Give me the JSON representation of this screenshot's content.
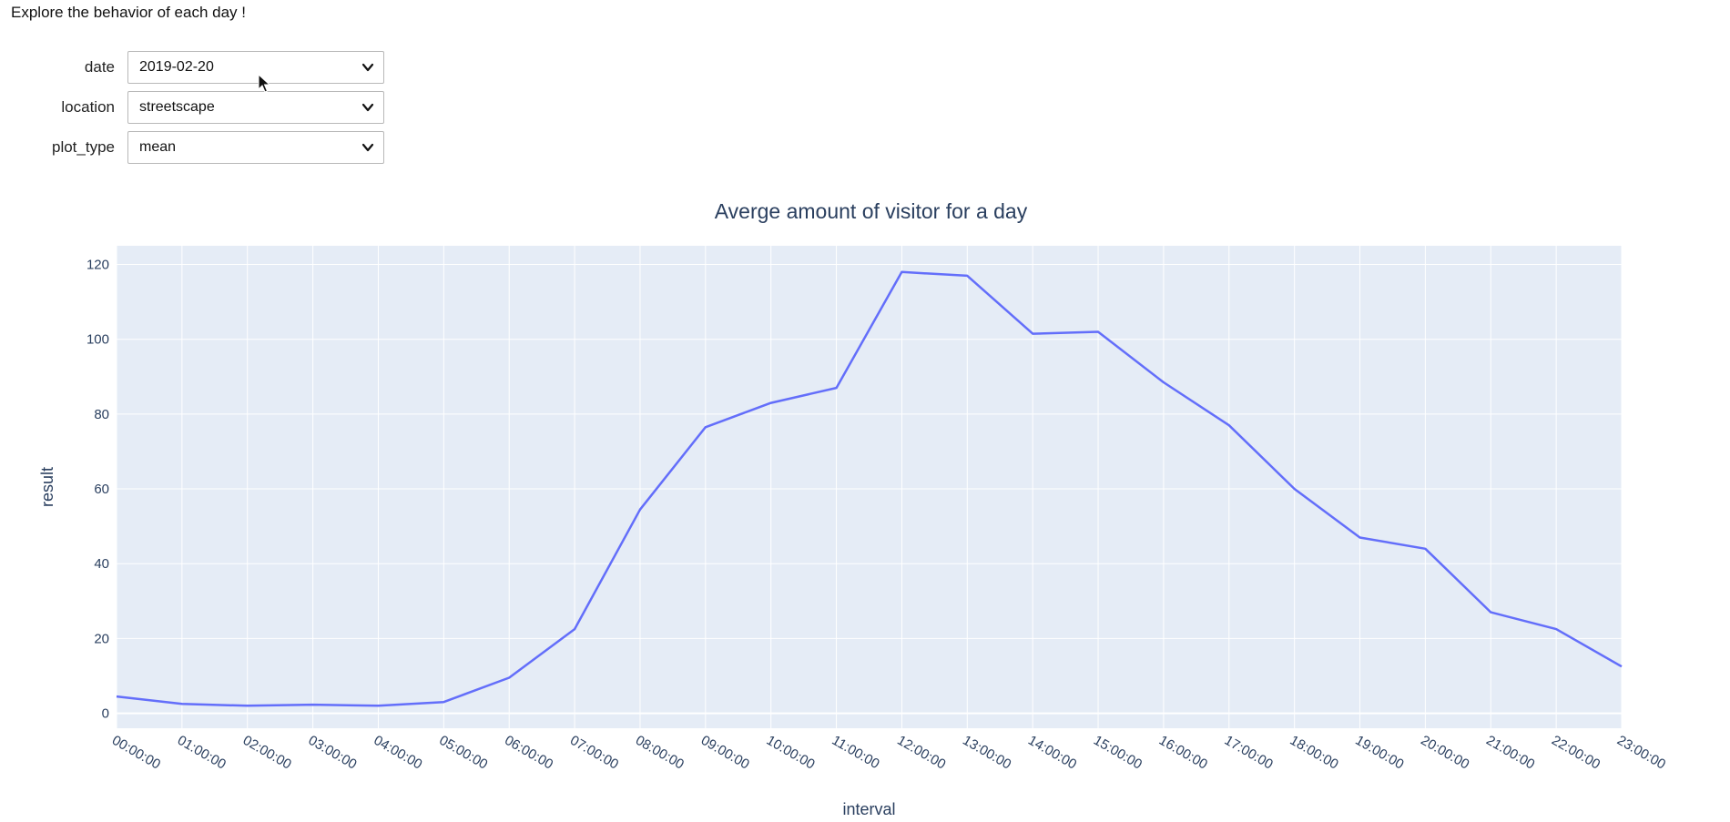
{
  "intro_text": "Explore the behavior of each day !",
  "controls": [
    {
      "label": "date",
      "value": "2019-02-20",
      "name": "date-select"
    },
    {
      "label": "location",
      "value": "streetscape",
      "name": "location-select"
    },
    {
      "label": "plot_type",
      "value": "mean",
      "name": "plot-type-select"
    }
  ],
  "chart_data": {
    "type": "line",
    "title": "Averge amount of visitor for a day",
    "xlabel": "interval",
    "ylabel": "result",
    "x": [
      "00:00:00",
      "01:00:00",
      "02:00:00",
      "03:00:00",
      "04:00:00",
      "05:00:00",
      "06:00:00",
      "07:00:00",
      "08:00:00",
      "09:00:00",
      "10:00:00",
      "11:00:00",
      "12:00:00",
      "13:00:00",
      "14:00:00",
      "15:00:00",
      "16:00:00",
      "17:00:00",
      "18:00:00",
      "19:00:00",
      "20:00:00",
      "21:00:00",
      "22:00:00",
      "23:00:00"
    ],
    "y": [
      4.5,
      2.5,
      2,
      2.3,
      2,
      3,
      9.5,
      22.5,
      54.5,
      76.5,
      83,
      87,
      118,
      117,
      101.5,
      102,
      88.5,
      77,
      60,
      47,
      44,
      27,
      22.5,
      12.5
    ],
    "yticks": [
      0,
      20,
      40,
      60,
      80,
      100,
      120
    ],
    "ylim": [
      -4,
      125
    ],
    "line_color": "#636efa",
    "plot_bg": "#e5ecf6",
    "grid_color": "#ffffff",
    "grid": true
  }
}
